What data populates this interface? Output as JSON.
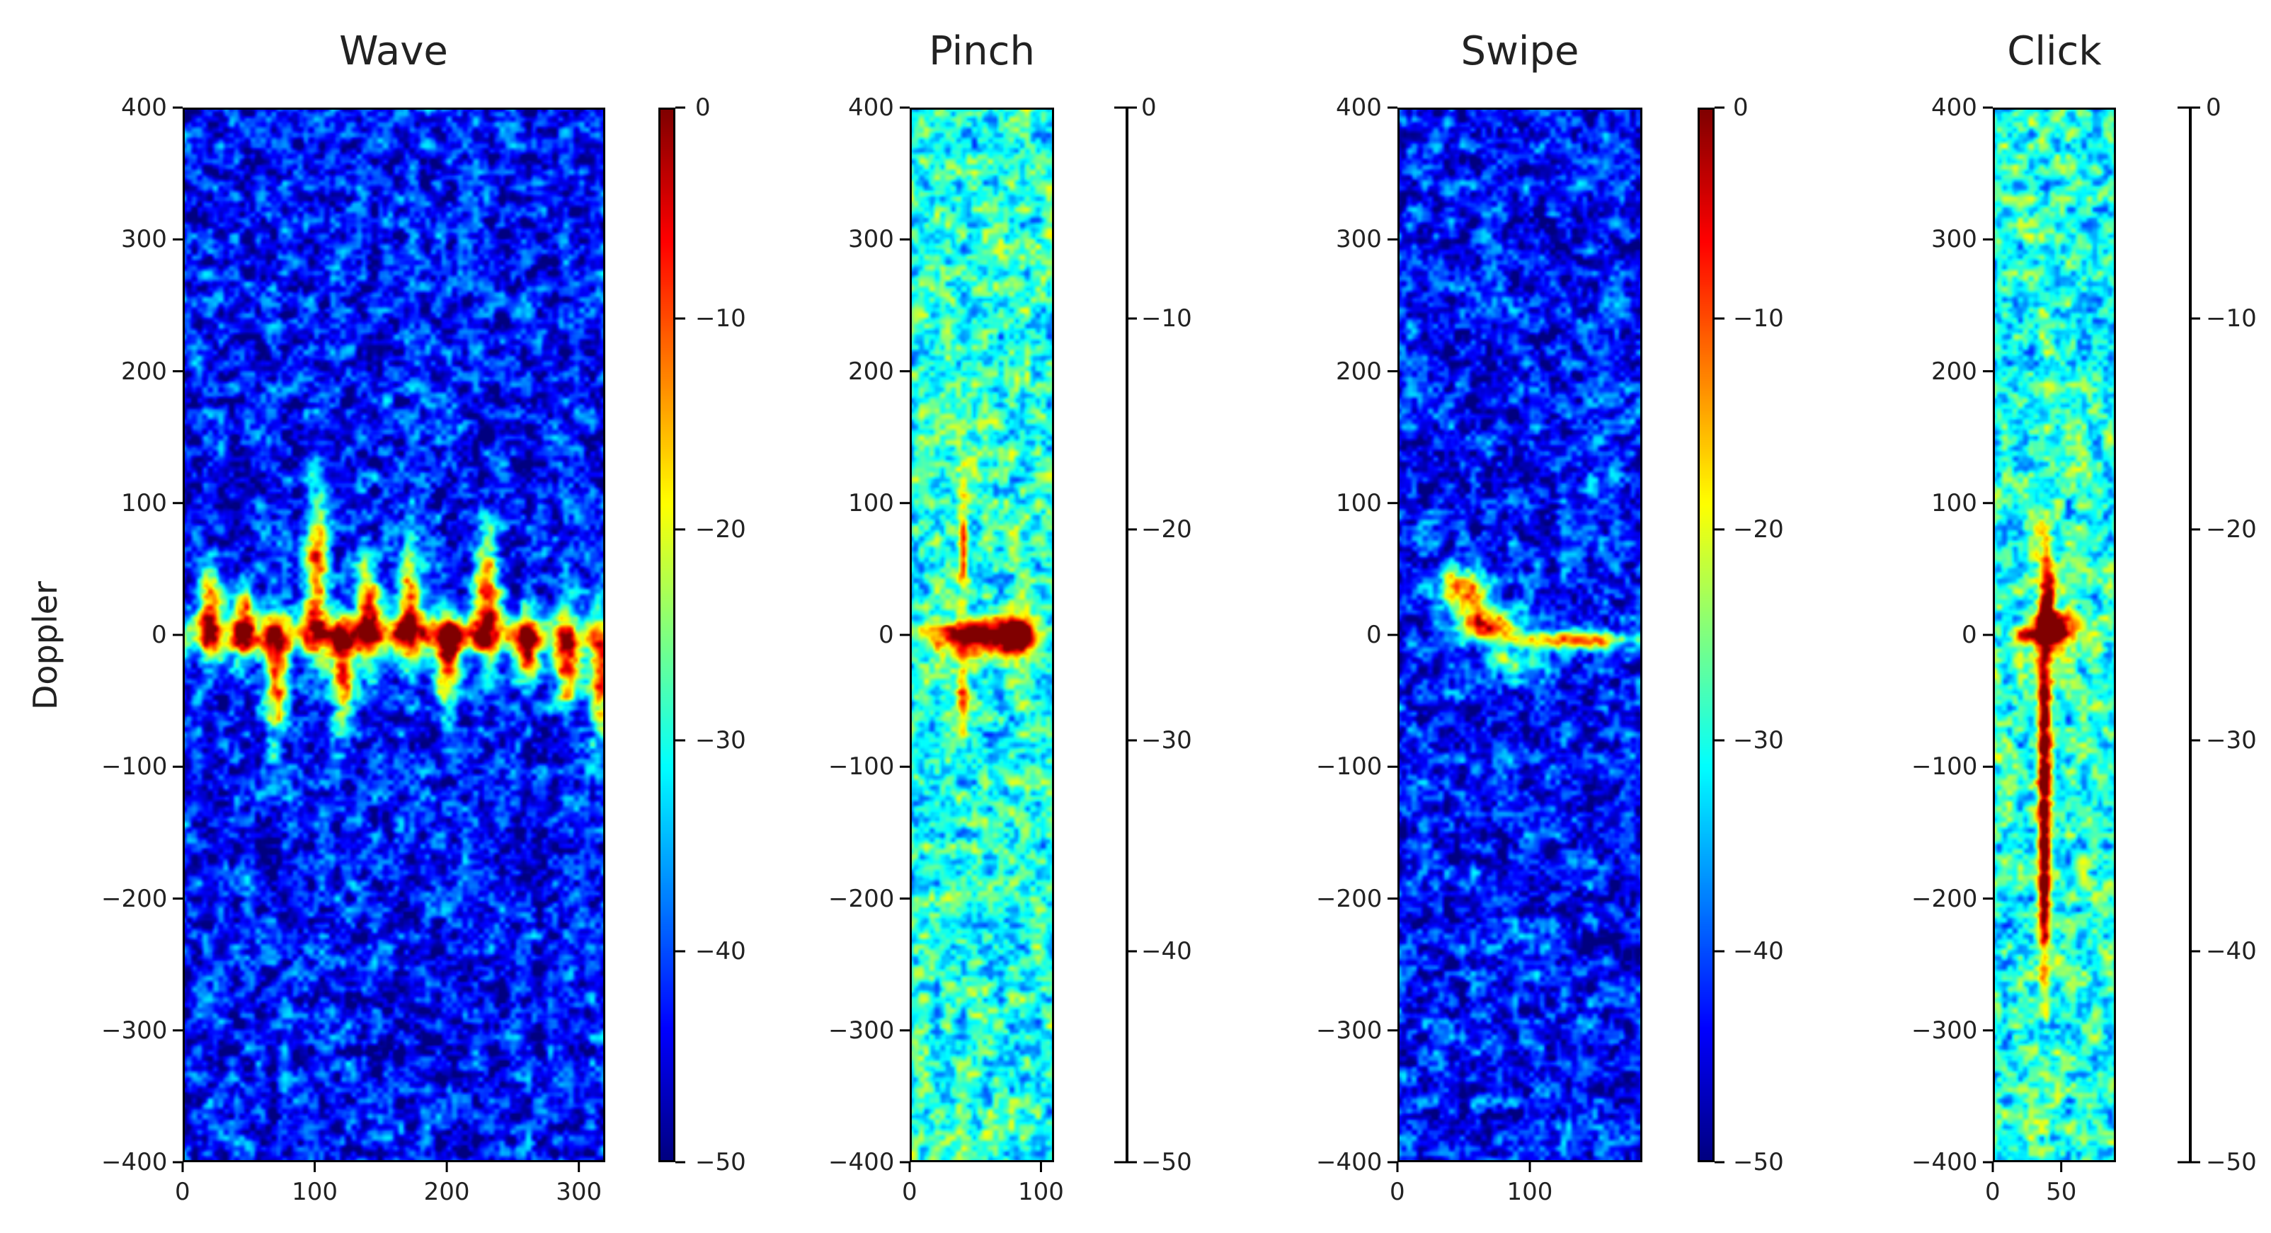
{
  "chart_data": [
    {
      "type": "heatmap",
      "title": "Wave",
      "ylabel": "Doppler",
      "xlim": [
        0,
        320
      ],
      "ylim": [
        -400,
        400
      ],
      "xticks": [
        0,
        100,
        200,
        300
      ],
      "yticks": [
        400,
        300,
        200,
        100,
        0,
        -100,
        -200,
        -300,
        -400
      ],
      "colorbar": {
        "range": [
          -50,
          0
        ],
        "ticks": [
          0,
          -10,
          -20,
          -30,
          -40,
          -50
        ],
        "colormap": "jet"
      },
      "background_level": -43
    },
    {
      "type": "heatmap",
      "title": "Pinch",
      "xlim": [
        0,
        110
      ],
      "ylim": [
        -400,
        400
      ],
      "xticks": [
        0,
        100
      ],
      "yticks": [
        400,
        300,
        200,
        100,
        0,
        -100,
        -200,
        -300,
        -400
      ],
      "colorbar": {
        "range": [
          -50,
          0
        ],
        "ticks": [
          0,
          -10,
          -20,
          -30,
          -40,
          -50
        ],
        "colormap": "jet"
      },
      "background_level": -30
    },
    {
      "type": "heatmap",
      "title": "Swipe",
      "xlim": [
        0,
        185
      ],
      "ylim": [
        -400,
        400
      ],
      "xticks": [
        0,
        100
      ],
      "yticks": [
        400,
        300,
        200,
        100,
        0,
        -100,
        -200,
        -300,
        -400
      ],
      "colorbar": {
        "range": [
          -50,
          0
        ],
        "ticks": [
          0,
          -10,
          -20,
          -30,
          -40,
          -50
        ],
        "colormap": "jet"
      },
      "background_level": -43
    },
    {
      "type": "heatmap",
      "title": "Click",
      "xlim": [
        0,
        90
      ],
      "ylim": [
        -400,
        400
      ],
      "xticks": [
        0,
        50
      ],
      "yticks": [
        400,
        300,
        200,
        100,
        0,
        -100,
        -200,
        -300,
        -400
      ],
      "colorbar": {
        "range": [
          -50,
          0
        ],
        "ticks": [
          0,
          -10,
          -20,
          -30,
          -40,
          -50
        ],
        "colormap": "jet"
      },
      "background_level": -30
    }
  ],
  "tick_text": {
    "y": [
      "400",
      "300",
      "200",
      "100",
      "0",
      "−100",
      "−200",
      "−300",
      "−400"
    ],
    "cb": [
      "0",
      "−10",
      "−20",
      "−30",
      "−40",
      "−50"
    ]
  }
}
